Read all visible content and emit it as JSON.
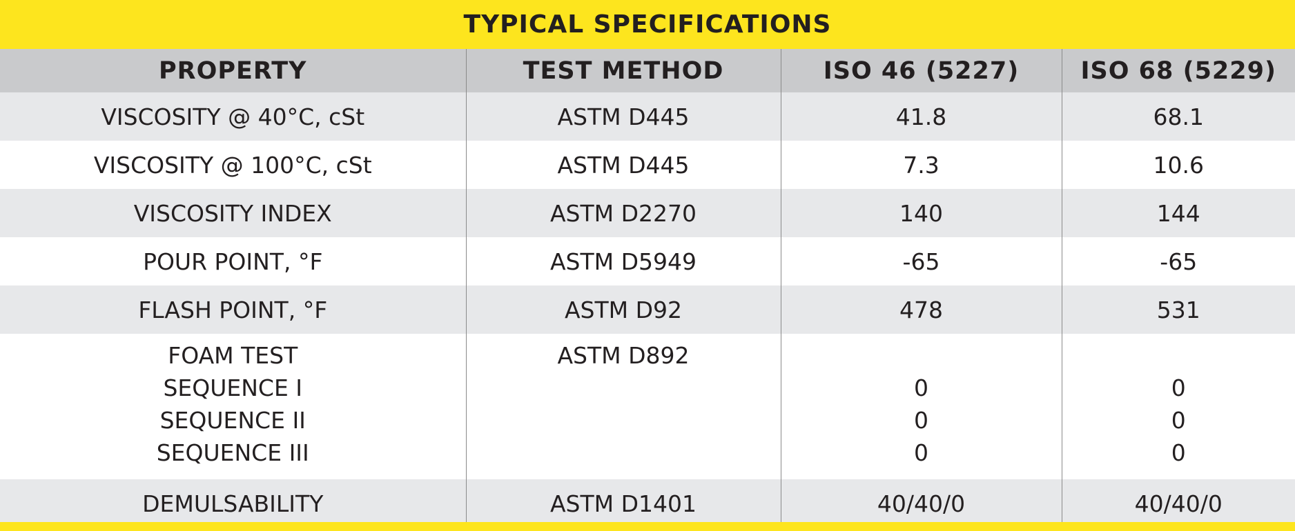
{
  "title": "TYPICAL SPECIFICATIONS",
  "headers": [
    "PROPERTY",
    "TEST METHOD",
    "ISO 46 (5227)",
    "ISO 68 (5229)"
  ],
  "rows": [
    {
      "property": "VISCOSITY @ 40°C, cSt",
      "method": "ASTM D445",
      "iso46": "41.8",
      "iso68": "68.1"
    },
    {
      "property": "VISCOSITY @ 100°C, cSt",
      "method": "ASTM D445",
      "iso46": "7.3",
      "iso68": "10.6"
    },
    {
      "property": "VISCOSITY INDEX",
      "method": "ASTM D2270",
      "iso46": "140",
      "iso68": "144"
    },
    {
      "property": "POUR POINT, °F",
      "method": "ASTM D5949",
      "iso46": "-65",
      "iso68": "-65"
    },
    {
      "property": "FLASH POINT, °F",
      "method": "ASTM D92",
      "iso46": "478",
      "iso68": "531"
    }
  ],
  "foam": {
    "property": "FOAM TEST",
    "sequences": [
      "SEQUENCE I",
      "SEQUENCE II",
      "SEQUENCE III"
    ],
    "method": "ASTM D892",
    "iso46": [
      "0",
      "0",
      "0"
    ],
    "iso68": [
      "0",
      "0",
      "0"
    ]
  },
  "demulsability": {
    "property": "DEMULSABILITY",
    "method": "ASTM D1401",
    "iso46": "40/40/0",
    "iso68": "40/40/0"
  },
  "colors": {
    "accent_yellow": "#fde51e",
    "header_gray": "#c9cacc",
    "row_gray": "#e7e8ea"
  }
}
